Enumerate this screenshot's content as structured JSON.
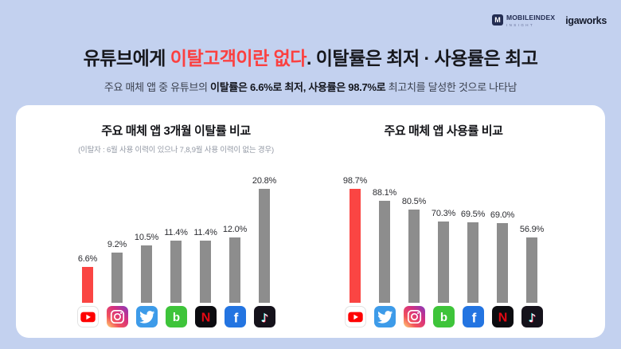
{
  "header": {
    "mobileindex": {
      "logo_letter": "M",
      "brand": "MOBILEINDEX",
      "sub_brand": "INSIGHT"
    },
    "igaworks": "igaworks"
  },
  "title": {
    "pre": "유튜브에게 ",
    "highlight": "이탈고객이란 없다",
    "post": ". 이탈률은 최저 · 사용률은 최고"
  },
  "subtitle": {
    "seg1": "주요 매체 앱 중 유튜브의 ",
    "seg2": "이탈률은 6.6%로 최저, 사용률은 98.7%로",
    "seg3": " 최고치를 달성한 것으로 나타남"
  },
  "colors": {
    "background": "#c3d1ef",
    "card": "#ffffff",
    "highlight_red": "#fb4040",
    "bar_gray": "#8d8d8d",
    "bar_red": "#fa4543"
  },
  "chart_data": [
    {
      "type": "bar",
      "title": "주요 매체 앱 3개월 이탈률 비교",
      "note": "(이탈자 : 6월 사용 이력이 있으나 7,8,9월 사용 이력이 없는 경우)",
      "categories": [
        "YouTube",
        "Instagram",
        "Twitter",
        "Band",
        "Netflix",
        "Facebook",
        "TikTok"
      ],
      "values": [
        6.6,
        9.2,
        10.5,
        11.4,
        11.4,
        12.0,
        20.8
      ],
      "labels": [
        "6.6%",
        "9.2%",
        "10.5%",
        "11.4%",
        "11.4%",
        "12.0%",
        "20.8%"
      ],
      "unit": "%",
      "highlight_index": 0,
      "bar_color": "#8d8d8d",
      "highlight_color": "#fa4543",
      "legend": "none",
      "grid": false
    },
    {
      "type": "bar",
      "title": "주요 매체 앱 사용률 비교",
      "note": "",
      "categories": [
        "YouTube",
        "Twitter",
        "Instagram",
        "Band",
        "Facebook",
        "Netflix",
        "TikTok"
      ],
      "values": [
        98.7,
        88.1,
        80.5,
        70.3,
        69.5,
        69.0,
        56.9
      ],
      "labels": [
        "98.7%",
        "88.1%",
        "80.5%",
        "70.3%",
        "69.5%",
        "69.0%",
        "56.9%"
      ],
      "unit": "%",
      "highlight_index": 0,
      "bar_color": "#8d8d8d",
      "highlight_color": "#fa4543",
      "legend": "none",
      "grid": false
    }
  ]
}
